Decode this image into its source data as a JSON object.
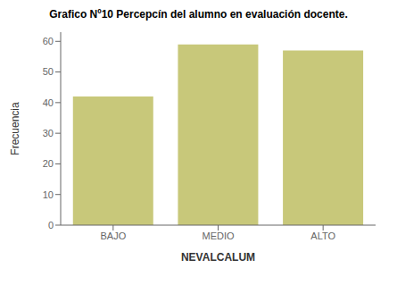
{
  "chart_data": {
    "type": "bar",
    "title": "Grafico Nº10 Percepcín del alumno en evaluación docente.",
    "xlabel": "NEVALCALUM",
    "ylabel": "Frecuencia",
    "categories": [
      "BAJO",
      "MEDIO",
      "ALTO"
    ],
    "values": [
      42,
      59,
      57
    ],
    "color": "#c8c87a",
    "ylim": [
      0,
      63
    ],
    "yticks": [
      0,
      10,
      20,
      30,
      40,
      50,
      60
    ],
    "grid": false
  }
}
